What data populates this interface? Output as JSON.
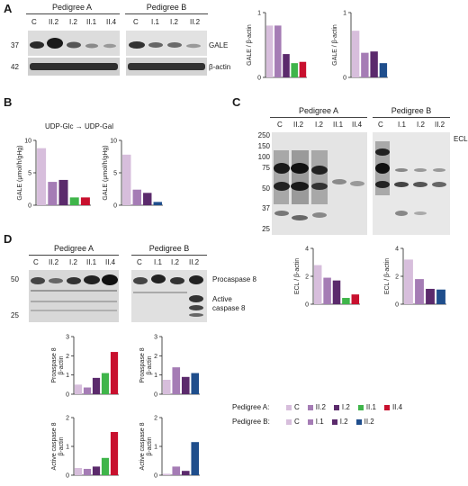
{
  "panels": {
    "A": {
      "letter": "A",
      "pedigree_a": {
        "title": "Pedigree A",
        "lanes": [
          "C",
          "II.2",
          "I.2",
          "II.1",
          "II.4"
        ]
      },
      "pedigree_b": {
        "title": "Pedigree B",
        "lanes": [
          "C",
          "I.1",
          "I.2",
          "II.2"
        ]
      },
      "mw_markers": [
        "37",
        "42"
      ],
      "band_labels": [
        "GALE",
        "β-actin"
      ]
    },
    "B": {
      "letter": "B",
      "reaction_label": "UDP-Glc → UDP-Gal"
    },
    "C": {
      "letter": "C",
      "pedigree_a": {
        "title": "Pedigree A",
        "lanes": [
          "C",
          "II.2",
          "I.2",
          "II.1",
          "II.4"
        ]
      },
      "pedigree_b": {
        "title": "Pedigree B",
        "lanes": [
          "C",
          "I.1",
          "I.2",
          "II.2"
        ]
      },
      "mw_markers": [
        "250",
        "150",
        "100",
        "75",
        "50",
        "37",
        "25"
      ],
      "band_label": "ECL"
    },
    "D": {
      "letter": "D",
      "pedigree_a": {
        "title": "Pedigree A",
        "lanes": [
          "C",
          "II.2",
          "I.2",
          "II.1",
          "II.4"
        ]
      },
      "pedigree_b": {
        "title": "Pedigree B",
        "lanes": [
          "C",
          "I.1",
          "I.2",
          "II.2"
        ]
      },
      "mw_markers": [
        "50",
        "25"
      ],
      "band_labels": [
        "Procaspase 8",
        "Active caspase 8"
      ]
    }
  },
  "colors": {
    "C": "#d7bedc",
    "II.2": "#a57cb5",
    "I.2": "#5b2a6c",
    "II.1": "#3fb54a",
    "II.4": "#c8102e",
    "I.1": "#a57cb5",
    "B_II.2": "#1f4e8c"
  },
  "legend": {
    "pedigree_a": {
      "label": "Pedigree A:",
      "items": [
        "C",
        "II.2",
        "I.2",
        "II.1",
        "II.4"
      ]
    },
    "pedigree_b": {
      "label": "Pedigree B:",
      "items": [
        "C",
        "I.1",
        "I.2",
        "II.2"
      ]
    }
  },
  "chart_data": [
    {
      "id": "A1",
      "type": "bar",
      "ylabel": "GALE / β-actin",
      "ylim": [
        0,
        1
      ],
      "yticks": [
        "0",
        "1"
      ],
      "categories": [
        "C",
        "II.2",
        "I.2",
        "II.1",
        "II.4"
      ],
      "values": [
        0.8,
        0.8,
        0.36,
        0.22,
        0.24
      ]
    },
    {
      "id": "A2",
      "type": "bar",
      "ylabel": "GALE / β-actin",
      "ylim": [
        0,
        1
      ],
      "yticks": [
        "0",
        "1"
      ],
      "categories": [
        "C",
        "I.1",
        "I.2",
        "II.2"
      ],
      "values": [
        0.72,
        0.38,
        0.4,
        0.22
      ]
    },
    {
      "id": "B1",
      "type": "bar",
      "ylabel": "GALE (μmol/h/gHg)",
      "ylim": [
        0,
        10
      ],
      "yticks": [
        "0",
        "5",
        "10"
      ],
      "categories": [
        "C",
        "II.2",
        "I.2",
        "II.1",
        "II.4"
      ],
      "values": [
        8.8,
        3.6,
        3.9,
        1.2,
        1.2
      ]
    },
    {
      "id": "B2",
      "type": "bar",
      "ylabel": "GALE (μmol/h/gHg)",
      "ylim": [
        0,
        10
      ],
      "yticks": [
        "0",
        "5",
        "10"
      ],
      "categories": [
        "C",
        "I.1",
        "I.2",
        "II.2"
      ],
      "values": [
        7.8,
        2.4,
        1.9,
        0.5
      ]
    },
    {
      "id": "C1",
      "type": "bar",
      "ylabel": "ECL / β-actin",
      "ylim": [
        0,
        4
      ],
      "yticks": [
        "0",
        "2",
        "4"
      ],
      "categories": [
        "C",
        "II.2",
        "I.2",
        "II.1",
        "II.4"
      ],
      "values": [
        2.8,
        1.9,
        1.7,
        0.45,
        0.7
      ]
    },
    {
      "id": "C2",
      "type": "bar",
      "ylabel": "ECL / β-actin",
      "ylim": [
        0,
        4
      ],
      "yticks": [
        "0",
        "2",
        "4"
      ],
      "categories": [
        "C",
        "I.1",
        "I.2",
        "II.2"
      ],
      "values": [
        3.2,
        1.8,
        1.1,
        1.05
      ]
    },
    {
      "id": "D1",
      "type": "bar",
      "ylabel": "Proaspase 8 / β-actin",
      "ylim": [
        0,
        3
      ],
      "yticks": [
        "0",
        "1",
        "2",
        "3"
      ],
      "categories": [
        "C",
        "II.2",
        "I.2",
        "II.1",
        "II.4"
      ],
      "values": [
        0.5,
        0.35,
        0.85,
        1.1,
        2.2
      ]
    },
    {
      "id": "D2",
      "type": "bar",
      "ylabel": "Proaspase 8 / β-actin",
      "ylim": [
        0,
        3
      ],
      "yticks": [
        "0",
        "1",
        "2",
        "3"
      ],
      "categories": [
        "C",
        "I.1",
        "I.2",
        "II.2"
      ],
      "values": [
        0.75,
        1.4,
        0.9,
        1.1
      ]
    },
    {
      "id": "D3",
      "type": "bar",
      "ylabel": "Active caspase 8 / β-actin",
      "ylim": [
        0,
        2
      ],
      "yticks": [
        "0",
        "1",
        "2"
      ],
      "categories": [
        "C",
        "II.2",
        "I.2",
        "II.1",
        "II.4"
      ],
      "values": [
        0.25,
        0.22,
        0.3,
        0.6,
        1.5
      ]
    },
    {
      "id": "D4",
      "type": "bar",
      "ylabel": "Active caspase 8 / β-actin",
      "ylim": [
        0,
        2
      ],
      "yticks": [
        "0",
        "1",
        "2"
      ],
      "categories": [
        "C",
        "I.1",
        "I.2",
        "II.2"
      ],
      "values": [
        0.05,
        0.3,
        0.15,
        1.15
      ]
    }
  ]
}
